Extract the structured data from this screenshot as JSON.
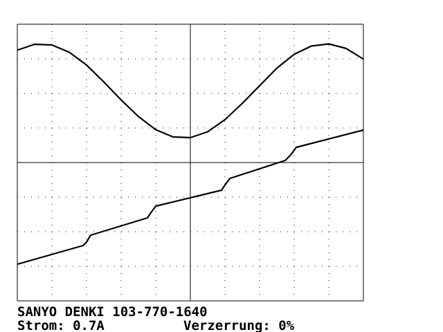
{
  "chart_data": {
    "type": "line",
    "caption_lines": [
      "SANYO DENKI 103-770-1640",
      "Strom: 0.7A",
      "Verzerrung: 0%"
    ],
    "xlim": [
      0,
      10
    ],
    "ylim": [
      -4,
      4
    ],
    "xticks": [
      0,
      1,
      2,
      3,
      4,
      5,
      6,
      7,
      8,
      9,
      10
    ],
    "yticks": [
      -4,
      -3,
      -2,
      -1,
      0,
      1,
      2,
      3,
      4
    ],
    "grid": true,
    "series": [
      {
        "color": "#000000",
        "x": [
          0,
          0.5,
          1,
          1.5,
          2,
          2.5,
          3,
          3.5,
          4,
          4.5,
          5,
          5.5,
          6,
          6.5,
          7,
          7.5,
          8,
          8.5,
          9,
          9.5,
          10
        ],
        "values": [
          3.25,
          3.42,
          3.4,
          3.19,
          2.82,
          2.33,
          1.81,
          1.33,
          0.95,
          0.74,
          0.72,
          0.89,
          1.24,
          1.71,
          2.22,
          2.73,
          3.13,
          3.37,
          3.43,
          3.3,
          2.99
        ]
      },
      {
        "color": "#000000",
        "x": [
          0,
          1.9,
          2.0,
          2.12,
          3.76,
          3.86,
          4.0,
          5.9,
          6.0,
          6.14,
          7.74,
          7.9,
          8.06,
          10
        ],
        "values": [
          -2.94,
          -2.4,
          -2.3,
          -2.1,
          -1.6,
          -1.45,
          -1.26,
          -0.8,
          -0.65,
          -0.46,
          0.06,
          0.22,
          0.44,
          0.94
        ]
      }
    ]
  }
}
